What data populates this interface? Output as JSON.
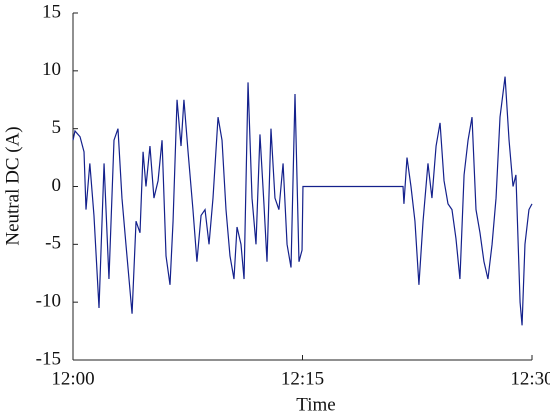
{
  "chart_data": {
    "type": "line",
    "xlabel": "Time",
    "ylabel": "Neutral DC (A)",
    "xlim": [
      0,
      30
    ],
    "xticks": [
      {
        "value": 0,
        "label": "12:00"
      },
      {
        "value": 15,
        "label": "12:15"
      },
      {
        "value": 30,
        "label": "12:30"
      }
    ],
    "ylim": [
      -15,
      15
    ],
    "yticks": [
      -15,
      -10,
      -5,
      0,
      5,
      10,
      15
    ],
    "x": [
      0,
      0.13,
      0.46,
      0.72,
      0.85,
      1.1,
      1.37,
      1.7,
      2.03,
      2.35,
      2.68,
      2.94,
      3.2,
      3.46,
      3.86,
      4.12,
      4.38,
      4.58,
      4.77,
      5.03,
      5.29,
      5.56,
      5.82,
      6.08,
      6.34,
      6.54,
      6.8,
      7.06,
      7.25,
      7.52,
      7.84,
      8.1,
      8.37,
      8.63,
      8.89,
      9.15,
      9.48,
      9.74,
      10.0,
      10.26,
      10.52,
      10.72,
      10.98,
      11.18,
      11.44,
      11.7,
      11.96,
      12.22,
      12.48,
      12.68,
      12.94,
      13.2,
      13.46,
      13.73,
      13.99,
      14.25,
      14.51,
      14.77,
      14.97,
      15.03,
      21.57,
      21.63,
      21.83,
      22.09,
      22.35,
      22.61,
      22.88,
      23.2,
      23.46,
      23.73,
      23.99,
      24.25,
      24.51,
      24.77,
      25.03,
      25.29,
      25.56,
      25.82,
      26.08,
      26.34,
      26.6,
      26.86,
      27.12,
      27.39,
      27.65,
      27.91,
      28.24,
      28.5,
      28.76,
      28.95,
      29.22,
      29.35,
      29.54,
      29.8,
      30
    ],
    "series": [
      {
        "color": "#14218c",
        "values": [
          4,
          4.8,
          4.3,
          3,
          -2,
          2,
          -2.5,
          -10.5,
          2,
          -8,
          4,
          5,
          -1,
          -5,
          -11,
          -3,
          -4,
          3,
          0,
          3.5,
          -1,
          0.5,
          4,
          -6,
          -8.5,
          -3,
          7.5,
          3.5,
          7.5,
          3,
          -2,
          -6.5,
          -2.5,
          -2,
          -5,
          -1,
          6,
          4,
          -2,
          -6,
          -8,
          -3.5,
          -5,
          -8,
          9,
          -1,
          -5,
          4.5,
          -1.5,
          -6.5,
          5,
          -1,
          -2,
          2,
          -5,
          -7,
          8,
          -6.5,
          -5.5,
          0,
          0,
          -1.5,
          2.5,
          0,
          -3,
          -8.5,
          -3,
          2,
          -1,
          3.5,
          5.5,
          0.5,
          -1.5,
          -2,
          -4.5,
          -8,
          1,
          4,
          6,
          -2,
          -4,
          -6.5,
          -8,
          -5,
          -1,
          6,
          9.5,
          4,
          0,
          1,
          -10,
          -12,
          -5,
          -2,
          -1.5
        ]
      }
    ]
  }
}
